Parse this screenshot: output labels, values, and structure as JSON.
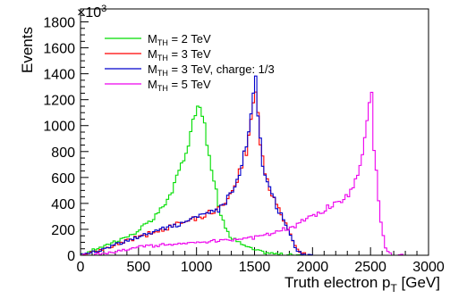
{
  "chart_data": {
    "type": "line",
    "title": "",
    "xlabel": "Truth electron p_T [GeV]",
    "xlabel_main": "Truth electron p",
    "xlabel_sub": "T",
    "xlabel_unit": " [GeV]",
    "ylabel": "Events",
    "y_multiplier_base": "×10",
    "y_multiplier_exp": "3",
    "xlim": [
      0,
      3000
    ],
    "ylim": [
      0,
      1900
    ],
    "xticks": [
      0,
      500,
      1000,
      1500,
      2000,
      2500,
      3000
    ],
    "yticks": [
      0,
      200,
      400,
      600,
      800,
      1000,
      1200,
      1400,
      1600,
      1800
    ],
    "bin_width": 20,
    "legend_position": "top-left",
    "grid": false,
    "series": [
      {
        "name": "M_TH = 2 TeV",
        "label_main": "M",
        "label_sub": "TH",
        "label_rest": " = 2 TeV",
        "color": "#00dd00",
        "profile": [
          [
            0,
            0
          ],
          [
            100,
            40
          ],
          [
            200,
            70
          ],
          [
            300,
            110
          ],
          [
            400,
            140
          ],
          [
            500,
            190
          ],
          [
            600,
            260
          ],
          [
            700,
            360
          ],
          [
            750,
            430
          ],
          [
            800,
            520
          ],
          [
            850,
            640
          ],
          [
            900,
            780
          ],
          [
            950,
            950
          ],
          [
            1000,
            1130
          ],
          [
            1020,
            1250
          ],
          [
            1040,
            1180
          ],
          [
            1070,
            1000
          ],
          [
            1100,
            820
          ],
          [
            1150,
            580
          ],
          [
            1200,
            330
          ],
          [
            1250,
            220
          ],
          [
            1300,
            140
          ],
          [
            1400,
            80
          ],
          [
            1500,
            40
          ],
          [
            1600,
            20
          ],
          [
            1700,
            10
          ],
          [
            1800,
            3
          ],
          [
            1900,
            0
          ],
          [
            3000,
            0
          ]
        ]
      },
      {
        "name": "M_TH = 3 TeV",
        "label_main": "M",
        "label_sub": "TH",
        "label_rest": " = 3 TeV",
        "color": "#ff0000",
        "profile": [
          [
            0,
            0
          ],
          [
            100,
            20
          ],
          [
            200,
            45
          ],
          [
            300,
            80
          ],
          [
            400,
            110
          ],
          [
            500,
            140
          ],
          [
            600,
            170
          ],
          [
            700,
            200
          ],
          [
            800,
            230
          ],
          [
            900,
            260
          ],
          [
            1000,
            290
          ],
          [
            1100,
            320
          ],
          [
            1200,
            360
          ],
          [
            1300,
            470
          ],
          [
            1350,
            560
          ],
          [
            1400,
            720
          ],
          [
            1450,
            900
          ],
          [
            1490,
            1200
          ],
          [
            1510,
            1320
          ],
          [
            1530,
            1100
          ],
          [
            1560,
            780
          ],
          [
            1600,
            600
          ],
          [
            1650,
            470
          ],
          [
            1700,
            380
          ],
          [
            1750,
            280
          ],
          [
            1800,
            180
          ],
          [
            1850,
            70
          ],
          [
            1900,
            20
          ],
          [
            1950,
            5
          ],
          [
            2000,
            0
          ],
          [
            3000,
            0
          ]
        ]
      },
      {
        "name": "M_TH = 3 TeV, charge: 1/3",
        "label_main": "M",
        "label_sub": "TH",
        "label_rest": " = 3 TeV, charge: 1/3",
        "color": "#0000cc",
        "profile": [
          [
            0,
            0
          ],
          [
            100,
            22
          ],
          [
            200,
            48
          ],
          [
            300,
            82
          ],
          [
            400,
            112
          ],
          [
            500,
            143
          ],
          [
            600,
            172
          ],
          [
            700,
            205
          ],
          [
            800,
            232
          ],
          [
            900,
            262
          ],
          [
            1000,
            295
          ],
          [
            1100,
            325
          ],
          [
            1200,
            365
          ],
          [
            1300,
            480
          ],
          [
            1350,
            570
          ],
          [
            1400,
            730
          ],
          [
            1450,
            920
          ],
          [
            1490,
            1220
          ],
          [
            1510,
            1340
          ],
          [
            1530,
            1090
          ],
          [
            1560,
            770
          ],
          [
            1600,
            590
          ],
          [
            1650,
            460
          ],
          [
            1700,
            370
          ],
          [
            1750,
            270
          ],
          [
            1800,
            170
          ],
          [
            1850,
            60
          ],
          [
            1900,
            15
          ],
          [
            1950,
            3
          ],
          [
            2000,
            0
          ],
          [
            3000,
            0
          ]
        ]
      },
      {
        "name": "M_TH = 5 TeV",
        "label_main": "M",
        "label_sub": "TH",
        "label_rest": " = 5 TeV",
        "color": "#ee00ee",
        "profile": [
          [
            0,
            0
          ],
          [
            200,
            10
          ],
          [
            400,
            40
          ],
          [
            500,
            65
          ],
          [
            700,
            80
          ],
          [
            1000,
            100
          ],
          [
            1300,
            120
          ],
          [
            1500,
            140
          ],
          [
            1700,
            180
          ],
          [
            1800,
            205
          ],
          [
            1900,
            250
          ],
          [
            2000,
            300
          ],
          [
            2100,
            350
          ],
          [
            2200,
            400
          ],
          [
            2300,
            460
          ],
          [
            2350,
            520
          ],
          [
            2400,
            640
          ],
          [
            2440,
            860
          ],
          [
            2470,
            1070
          ],
          [
            2490,
            1240
          ],
          [
            2510,
            1180
          ],
          [
            2530,
            820
          ],
          [
            2560,
            520
          ],
          [
            2590,
            270
          ],
          [
            2620,
            90
          ],
          [
            2650,
            20
          ],
          [
            2700,
            3
          ],
          [
            2800,
            0
          ],
          [
            3000,
            0
          ]
        ]
      }
    ]
  }
}
